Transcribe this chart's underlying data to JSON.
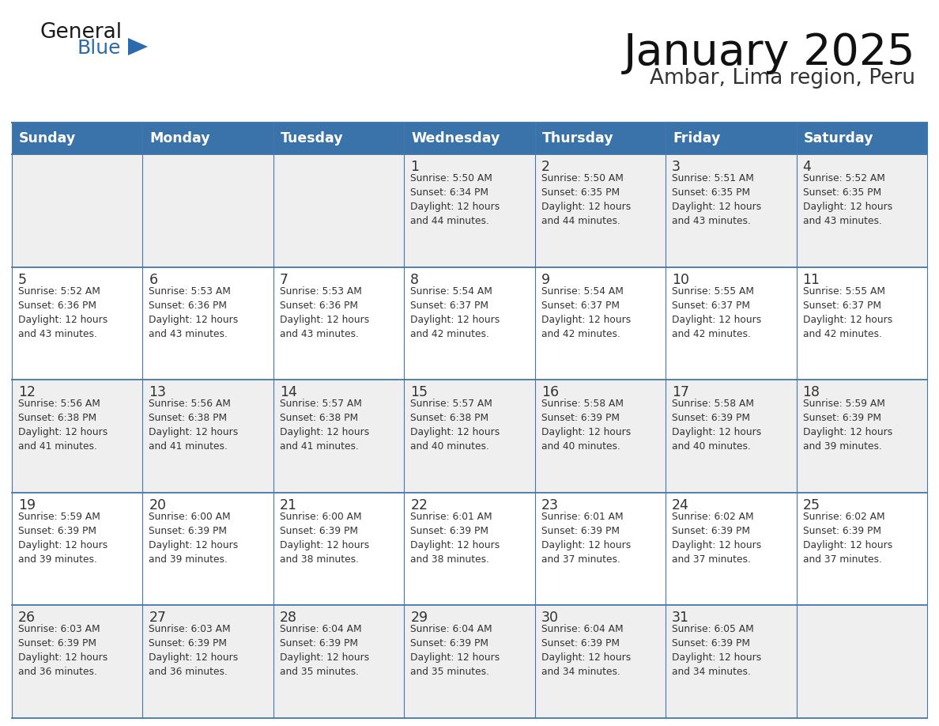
{
  "title": "January 2025",
  "subtitle": "Ambar, Lima region, Peru",
  "header_color": "#3a72aa",
  "header_text_color": "#ffffff",
  "row_bg_even": "#efefef",
  "row_bg_odd": "#ffffff",
  "border_color": "#4477aa",
  "text_color": "#333333",
  "days_of_week": [
    "Sunday",
    "Monday",
    "Tuesday",
    "Wednesday",
    "Thursday",
    "Friday",
    "Saturday"
  ],
  "calendar_data": [
    [
      {
        "day": "",
        "info": ""
      },
      {
        "day": "",
        "info": ""
      },
      {
        "day": "",
        "info": ""
      },
      {
        "day": "1",
        "info": "Sunrise: 5:50 AM\nSunset: 6:34 PM\nDaylight: 12 hours\nand 44 minutes."
      },
      {
        "day": "2",
        "info": "Sunrise: 5:50 AM\nSunset: 6:35 PM\nDaylight: 12 hours\nand 44 minutes."
      },
      {
        "day": "3",
        "info": "Sunrise: 5:51 AM\nSunset: 6:35 PM\nDaylight: 12 hours\nand 43 minutes."
      },
      {
        "day": "4",
        "info": "Sunrise: 5:52 AM\nSunset: 6:35 PM\nDaylight: 12 hours\nand 43 minutes."
      }
    ],
    [
      {
        "day": "5",
        "info": "Sunrise: 5:52 AM\nSunset: 6:36 PM\nDaylight: 12 hours\nand 43 minutes."
      },
      {
        "day": "6",
        "info": "Sunrise: 5:53 AM\nSunset: 6:36 PM\nDaylight: 12 hours\nand 43 minutes."
      },
      {
        "day": "7",
        "info": "Sunrise: 5:53 AM\nSunset: 6:36 PM\nDaylight: 12 hours\nand 43 minutes."
      },
      {
        "day": "8",
        "info": "Sunrise: 5:54 AM\nSunset: 6:37 PM\nDaylight: 12 hours\nand 42 minutes."
      },
      {
        "day": "9",
        "info": "Sunrise: 5:54 AM\nSunset: 6:37 PM\nDaylight: 12 hours\nand 42 minutes."
      },
      {
        "day": "10",
        "info": "Sunrise: 5:55 AM\nSunset: 6:37 PM\nDaylight: 12 hours\nand 42 minutes."
      },
      {
        "day": "11",
        "info": "Sunrise: 5:55 AM\nSunset: 6:37 PM\nDaylight: 12 hours\nand 42 minutes."
      }
    ],
    [
      {
        "day": "12",
        "info": "Sunrise: 5:56 AM\nSunset: 6:38 PM\nDaylight: 12 hours\nand 41 minutes."
      },
      {
        "day": "13",
        "info": "Sunrise: 5:56 AM\nSunset: 6:38 PM\nDaylight: 12 hours\nand 41 minutes."
      },
      {
        "day": "14",
        "info": "Sunrise: 5:57 AM\nSunset: 6:38 PM\nDaylight: 12 hours\nand 41 minutes."
      },
      {
        "day": "15",
        "info": "Sunrise: 5:57 AM\nSunset: 6:38 PM\nDaylight: 12 hours\nand 40 minutes."
      },
      {
        "day": "16",
        "info": "Sunrise: 5:58 AM\nSunset: 6:39 PM\nDaylight: 12 hours\nand 40 minutes."
      },
      {
        "day": "17",
        "info": "Sunrise: 5:58 AM\nSunset: 6:39 PM\nDaylight: 12 hours\nand 40 minutes."
      },
      {
        "day": "18",
        "info": "Sunrise: 5:59 AM\nSunset: 6:39 PM\nDaylight: 12 hours\nand 39 minutes."
      }
    ],
    [
      {
        "day": "19",
        "info": "Sunrise: 5:59 AM\nSunset: 6:39 PM\nDaylight: 12 hours\nand 39 minutes."
      },
      {
        "day": "20",
        "info": "Sunrise: 6:00 AM\nSunset: 6:39 PM\nDaylight: 12 hours\nand 39 minutes."
      },
      {
        "day": "21",
        "info": "Sunrise: 6:00 AM\nSunset: 6:39 PM\nDaylight: 12 hours\nand 38 minutes."
      },
      {
        "day": "22",
        "info": "Sunrise: 6:01 AM\nSunset: 6:39 PM\nDaylight: 12 hours\nand 38 minutes."
      },
      {
        "day": "23",
        "info": "Sunrise: 6:01 AM\nSunset: 6:39 PM\nDaylight: 12 hours\nand 37 minutes."
      },
      {
        "day": "24",
        "info": "Sunrise: 6:02 AM\nSunset: 6:39 PM\nDaylight: 12 hours\nand 37 minutes."
      },
      {
        "day": "25",
        "info": "Sunrise: 6:02 AM\nSunset: 6:39 PM\nDaylight: 12 hours\nand 37 minutes."
      }
    ],
    [
      {
        "day": "26",
        "info": "Sunrise: 6:03 AM\nSunset: 6:39 PM\nDaylight: 12 hours\nand 36 minutes."
      },
      {
        "day": "27",
        "info": "Sunrise: 6:03 AM\nSunset: 6:39 PM\nDaylight: 12 hours\nand 36 minutes."
      },
      {
        "day": "28",
        "info": "Sunrise: 6:04 AM\nSunset: 6:39 PM\nDaylight: 12 hours\nand 35 minutes."
      },
      {
        "day": "29",
        "info": "Sunrise: 6:04 AM\nSunset: 6:39 PM\nDaylight: 12 hours\nand 35 minutes."
      },
      {
        "day": "30",
        "info": "Sunrise: 6:04 AM\nSunset: 6:39 PM\nDaylight: 12 hours\nand 34 minutes."
      },
      {
        "day": "31",
        "info": "Sunrise: 6:05 AM\nSunset: 6:39 PM\nDaylight: 12 hours\nand 34 minutes."
      },
      {
        "day": "",
        "info": ""
      }
    ]
  ],
  "logo_general_color": "#1a1a1a",
  "logo_blue_color": "#2a6aad",
  "logo_triangle_color": "#2a6aad"
}
